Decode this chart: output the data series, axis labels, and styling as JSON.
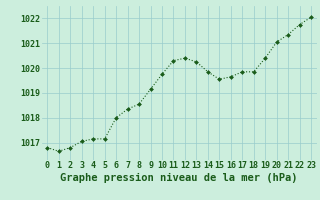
{
  "x": [
    0,
    1,
    2,
    3,
    4,
    5,
    6,
    7,
    8,
    9,
    10,
    11,
    12,
    13,
    14,
    15,
    16,
    17,
    18,
    19,
    20,
    21,
    22,
    23
  ],
  "y": [
    1016.8,
    1016.65,
    1016.8,
    1017.05,
    1017.15,
    1017.15,
    1018.0,
    1018.35,
    1018.55,
    1019.15,
    1019.75,
    1020.3,
    1020.4,
    1020.25,
    1019.85,
    1019.55,
    1019.65,
    1019.85,
    1019.85,
    1020.4,
    1021.05,
    1021.35,
    1021.75,
    1022.05
  ],
  "line_color": "#1a5c1a",
  "marker_color": "#1a5c1a",
  "bg_color": "#cceedd",
  "grid_color": "#99cccc",
  "ylabel_ticks": [
    1017,
    1018,
    1019,
    1020,
    1021,
    1022
  ],
  "xlabel_label": "Graphe pression niveau de la mer (hPa)",
  "ylim_min": 1016.3,
  "ylim_max": 1022.5,
  "xlim_min": -0.5,
  "xlim_max": 23.5,
  "tick_fontsize": 6,
  "label_fontsize": 7.5,
  "label_color": "#1a5c1a",
  "tick_color": "#1a5c1a"
}
